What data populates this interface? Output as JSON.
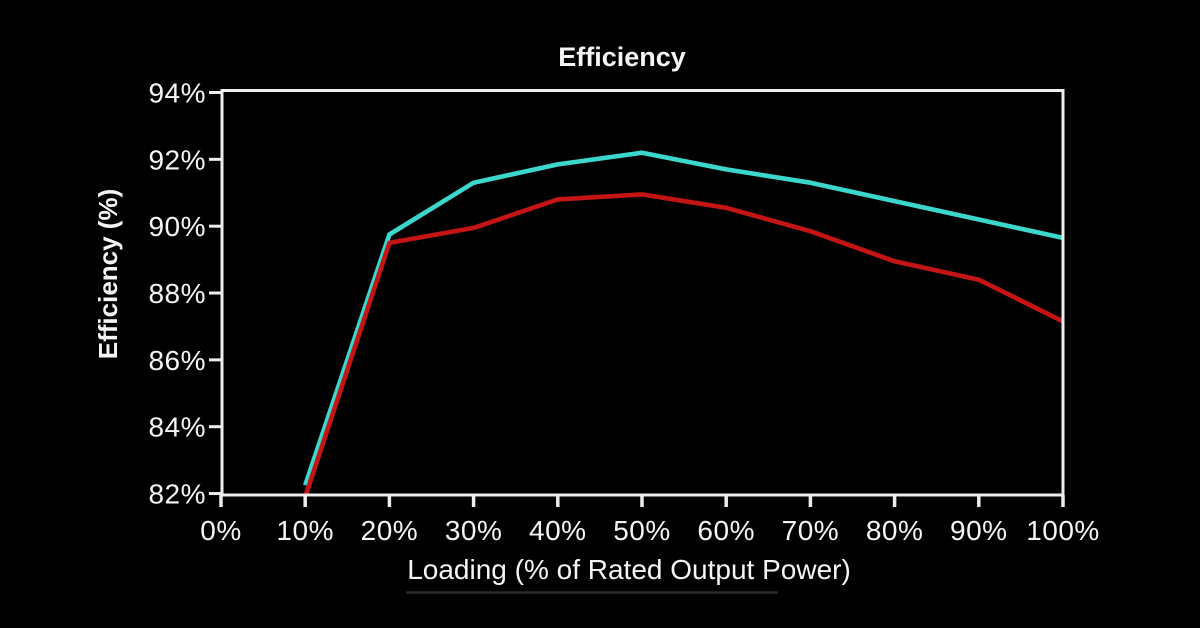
{
  "page": {
    "background": "#000000"
  },
  "chart_data": {
    "type": "line",
    "title": "Efficiency",
    "xlabel": "Loading (% of Rated Output Power)",
    "ylabel": "Efficiency (%)",
    "x_tick_values": [
      0,
      10,
      20,
      30,
      40,
      50,
      60,
      70,
      80,
      90,
      100
    ],
    "x_tick_labels": [
      "0%",
      "10%",
      "20%",
      "30%",
      "40%",
      "50%",
      "60%",
      "70%",
      "80%",
      "90%",
      "100%"
    ],
    "y_tick_values": [
      94,
      92,
      90,
      88,
      86,
      84,
      82
    ],
    "y_tick_labels": [
      "94%",
      "92%",
      "90%",
      "88%",
      "86%",
      "84%",
      "82%"
    ],
    "x": [
      10,
      20,
      30,
      40,
      50,
      60,
      70,
      80,
      90,
      100
    ],
    "series": [
      {
        "name": "high-efficiency-line",
        "color": "#3bd6cc",
        "values": [
          82.25,
          89.75,
          91.3,
          91.85,
          92.2,
          91.7,
          91.3,
          90.75,
          90.2,
          89.65
        ]
      },
      {
        "name": "low-efficiency-line",
        "color": "#c41515",
        "values": [
          81.9,
          89.5,
          89.95,
          90.8,
          90.95,
          90.55,
          89.85,
          88.95,
          88.4,
          87.15
        ]
      }
    ],
    "xlim": [
      0,
      100
    ],
    "ylim": [
      81.9,
      94
    ],
    "grid": false,
    "legend": "none",
    "axis_color": "#ededed",
    "text_color": "#f5f5f5",
    "background": "#000000"
  }
}
